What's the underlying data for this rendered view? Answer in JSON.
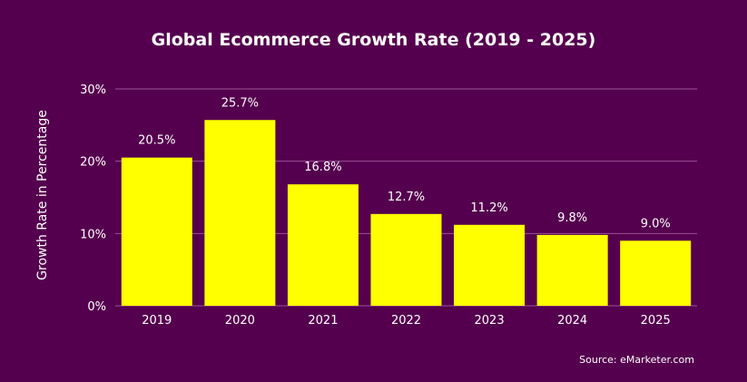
{
  "chart_data": {
    "type": "bar",
    "title": "Global Ecommerce Growth Rate (2019 - 2025)",
    "categories": [
      "2019",
      "2020",
      "2021",
      "2022",
      "2023",
      "2024",
      "2025"
    ],
    "values": [
      20.5,
      25.7,
      16.8,
      12.7,
      11.2,
      9.8,
      9.0
    ],
    "data_labels": [
      "20.5%",
      "25.7%",
      "16.8%",
      "12.7%",
      "11.2%",
      "9.8%",
      "9.0%"
    ],
    "xlabel": "",
    "ylabel": "Growth Rate in Percentage",
    "ylim": [
      0,
      30
    ],
    "yticks": [
      0,
      10,
      20,
      30
    ],
    "ytick_labels": [
      "0%",
      "10%",
      "20%",
      "30%"
    ],
    "grid": true,
    "legend": "none",
    "source": "Source: eMarketer.com",
    "colors": {
      "background": "#55004e",
      "bar": "#ffff00",
      "grid": "#9a5296",
      "text": "#ffffff"
    }
  }
}
